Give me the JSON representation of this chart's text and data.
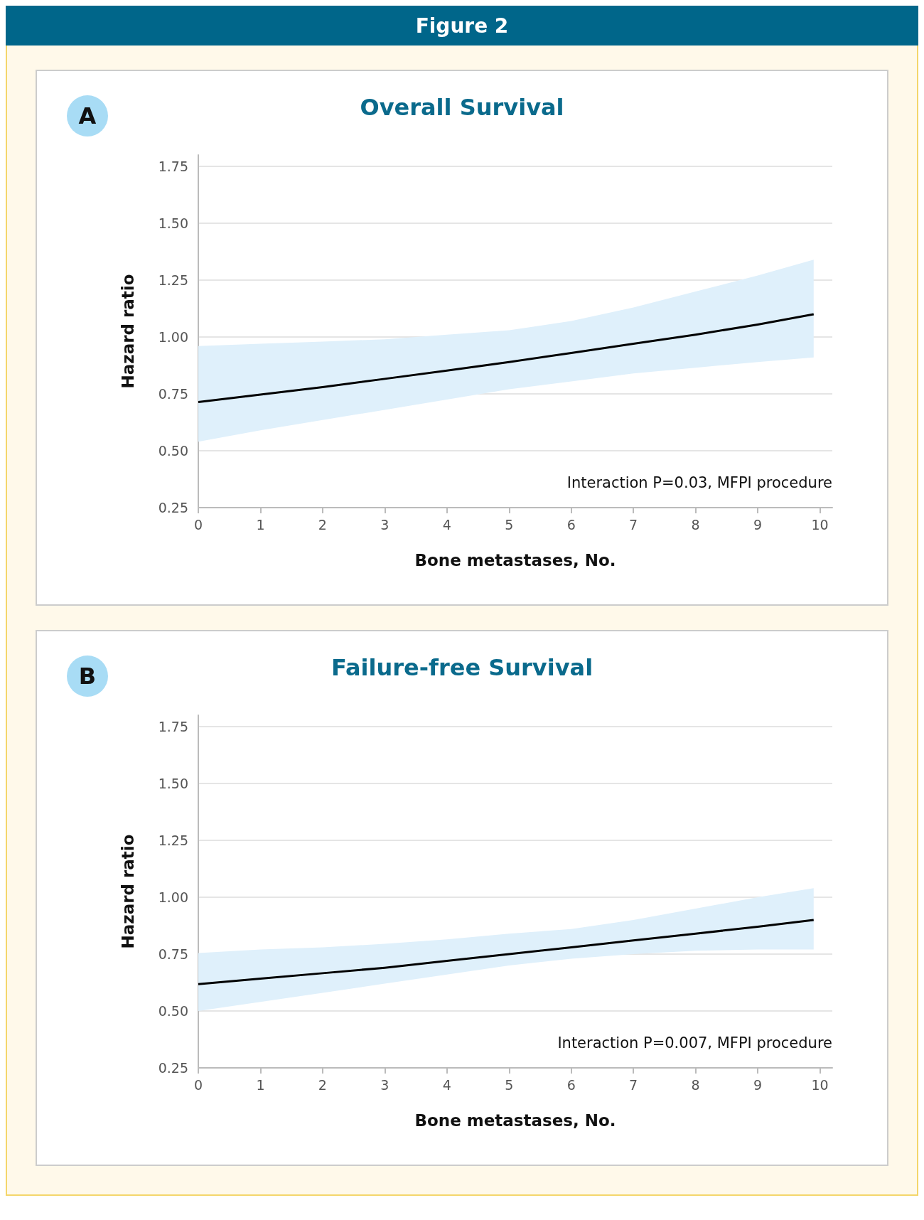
{
  "chart_data": [
    {
      "type": "line",
      "title": "Overall Survival",
      "xlabel": "Bone metastases, No.",
      "ylabel": "Hazard ratio",
      "annotations": [
        "Figure 2",
        "A",
        "Interaction P=0.03, MFPI procedure"
      ],
      "xlim": [
        0,
        10.2
      ],
      "xticks": [
        0,
        1,
        2,
        3,
        4,
        5,
        6,
        7,
        8,
        9,
        10
      ],
      "ylim": [
        0.25,
        1.8
      ],
      "yticks": [
        0.25,
        {
          "value": 0.5,
          "label": "0.50"
        },
        0.75,
        {
          "value": 1,
          "label": "1.00"
        },
        1.25,
        {
          "value": 1.5,
          "label": "1.50"
        },
        1.75
      ],
      "grid": "y",
      "marker": "none",
      "line_style": "solid",
      "x": [
        0,
        1,
        2,
        3,
        4,
        5,
        6,
        7,
        8,
        9,
        9.9
      ],
      "series": [
        {
          "color": "#000000",
          "values": [
            0.714,
            0.747,
            0.78,
            0.816,
            0.852,
            0.89,
            0.93,
            0.97,
            1.01,
            1.055,
            1.1
          ],
          "lower": [
            0.54,
            0.59,
            0.635,
            0.68,
            0.725,
            0.77,
            0.805,
            0.84,
            0.865,
            0.89,
            0.91
          ],
          "upper": [
            0.96,
            0.97,
            0.98,
            0.99,
            1.01,
            1.03,
            1.07,
            1.13,
            1.2,
            1.27,
            1.34
          ]
        }
      ]
    },
    {
      "type": "line",
      "title": "Failure-free Survival",
      "xlabel": "Bone metastases, No.",
      "ylabel": "Hazard ratio",
      "annotations": [
        "B",
        "Interaction P=0.007, MFPI procedure"
      ],
      "xlim": [
        0,
        10.2
      ],
      "xticks": [
        0,
        1,
        2,
        3,
        4,
        5,
        6,
        7,
        8,
        9,
        10
      ],
      "ylim": [
        0.25,
        1.8
      ],
      "yticks": [
        0.25,
        {
          "value": 0.5,
          "label": "0.50"
        },
        0.75,
        {
          "value": 1,
          "label": "1.00"
        },
        1.25,
        {
          "value": 1.5,
          "label": "1.50"
        },
        1.75
      ],
      "grid": "y",
      "marker": "none",
      "line_style": "solid",
      "x": [
        0,
        1,
        2,
        3,
        4,
        5,
        6,
        7,
        8,
        9,
        9.9
      ],
      "series": [
        {
          "color": "#000000",
          "values": [
            0.618,
            0.642,
            0.666,
            0.69,
            0.72,
            0.75,
            0.78,
            0.81,
            0.84,
            0.87,
            0.9
          ],
          "lower": [
            0.5,
            0.54,
            0.58,
            0.62,
            0.66,
            0.7,
            0.73,
            0.75,
            0.765,
            0.77,
            0.77
          ],
          "upper": [
            0.755,
            0.77,
            0.78,
            0.795,
            0.815,
            0.84,
            0.86,
            0.9,
            0.95,
            1.0,
            1.04
          ]
        }
      ]
    }
  ]
}
